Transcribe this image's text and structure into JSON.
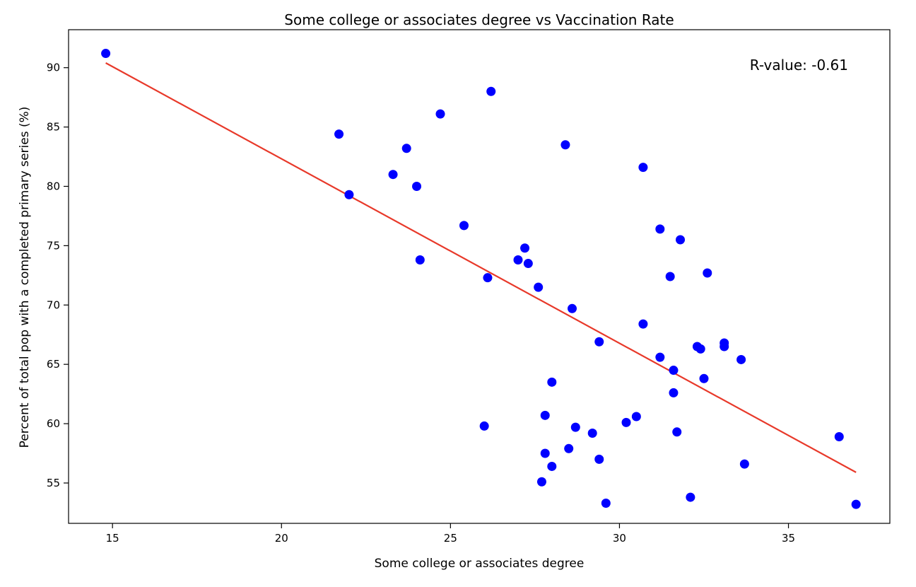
{
  "chart_data": {
    "type": "scatter",
    "title": "Some college or associates degree vs Vaccination Rate",
    "xlabel": "Some college or associates degree",
    "ylabel": "Percent of total pop with a completed primary series (%)",
    "xlim": [
      13.7,
      38.0
    ],
    "ylim": [
      51.6,
      93.2
    ],
    "xticks": [
      15,
      20,
      25,
      30,
      35
    ],
    "yticks": [
      55,
      60,
      65,
      70,
      75,
      80,
      85,
      90
    ],
    "grid": false,
    "annotation": "R-value: -0.61",
    "colors": {
      "points": "#0000ff",
      "regression": "#e8392a"
    },
    "series": [
      {
        "kind": "scatter",
        "x": [
          14.8,
          21.7,
          22.0,
          23.3,
          23.7,
          24.0,
          24.1,
          24.7,
          25.4,
          26.0,
          26.1,
          26.2,
          27.0,
          27.2,
          27.3,
          27.6,
          27.7,
          27.8,
          27.8,
          28.0,
          28.0,
          28.4,
          28.5,
          28.6,
          28.7,
          29.2,
          29.4,
          29.4,
          29.6,
          30.2,
          30.5,
          30.7,
          30.7,
          31.2,
          31.2,
          31.5,
          31.6,
          31.6,
          31.7,
          31.8,
          32.1,
          32.3,
          32.4,
          32.5,
          32.6,
          33.1,
          33.1,
          33.6,
          33.7,
          36.5,
          37.0
        ],
        "y": [
          91.2,
          84.4,
          79.3,
          81.0,
          83.2,
          80.0,
          73.8,
          86.1,
          76.7,
          59.8,
          72.3,
          88.0,
          73.8,
          74.8,
          73.5,
          71.5,
          55.1,
          57.5,
          60.7,
          56.4,
          63.5,
          83.5,
          57.9,
          69.7,
          59.7,
          59.2,
          57.0,
          66.9,
          53.3,
          60.1,
          60.6,
          81.6,
          68.4,
          76.4,
          65.6,
          72.4,
          62.6,
          64.5,
          59.3,
          75.5,
          53.8,
          66.5,
          66.3,
          63.8,
          72.7,
          66.5,
          66.8,
          65.4,
          56.6,
          58.9,
          53.2
        ]
      },
      {
        "kind": "line",
        "x": [
          14.8,
          37.0
        ],
        "y": [
          90.4,
          55.9
        ]
      }
    ]
  }
}
